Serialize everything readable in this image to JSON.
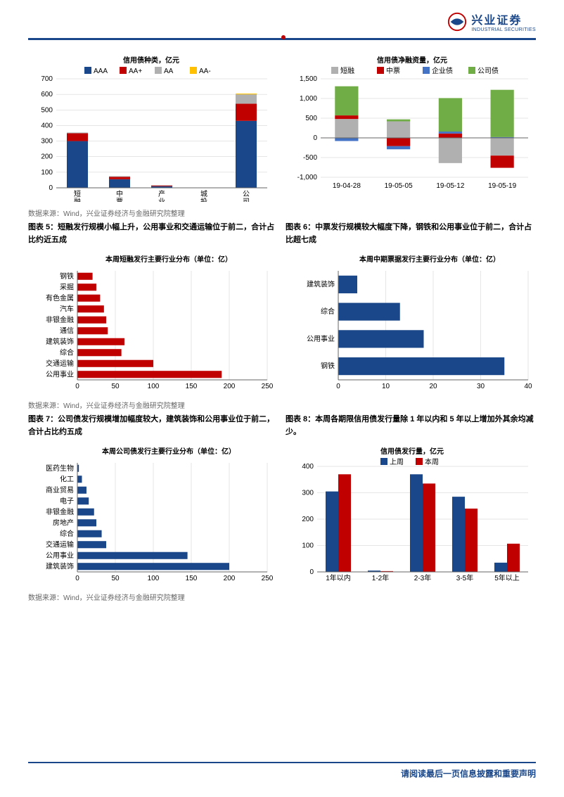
{
  "logo": {
    "cn": "兴业证券",
    "en": "INDUSTRIAL SECURITIES"
  },
  "source": "数据来源：Wind，兴业证券经济与金融研究院整理",
  "footer": "请阅读最后一页信息披露和重要声明",
  "chart1": {
    "title": "信用债种类，亿元",
    "type": "bar",
    "legend": [
      "AAA",
      "AA+",
      "AA",
      "AA-"
    ],
    "legend_colors": [
      "#1a4789",
      "#c00000",
      "#b0b0b0",
      "#ffc000"
    ],
    "categories": [
      "短融",
      "中票",
      "产业债",
      "城投债",
      "公司债"
    ],
    "ylim": [
      0,
      700
    ],
    "ytick_step": 100,
    "series": {
      "AAA": [
        300,
        55,
        10,
        0,
        430
      ],
      "AA+": [
        50,
        15,
        5,
        0,
        110
      ],
      "AA": [
        5,
        5,
        2,
        0,
        60
      ],
      "AA-": [
        0,
        0,
        0,
        0,
        5
      ]
    },
    "background_color": "#ffffff",
    "bar_width": 0.6
  },
  "chart2": {
    "title": "信用债净融资量，亿元",
    "type": "stacked_bar",
    "legend": [
      "短融",
      "中票",
      "企业债",
      "公司债"
    ],
    "legend_colors": [
      "#b0b0b0",
      "#c00000",
      "#4472c4",
      "#70ad47"
    ],
    "categories": [
      "19-04-28",
      "19-05-05",
      "19-05-12",
      "19-05-19"
    ],
    "ylim": [
      -1000,
      1500
    ],
    "ytick_step": 500,
    "series": {
      "short": [
        480,
        420,
        -640,
        -450
      ],
      "mid": [
        90,
        -210,
        110,
        -310
      ],
      "corp": [
        -80,
        -80,
        50,
        20
      ],
      "company": [
        740,
        50,
        850,
        1200
      ]
    }
  },
  "caption56": {
    "left": "图表 5：短融发行规模小幅上升，公用事业和交通运输位于前二，合计占比约近五成",
    "right": "图表 6：中票发行规模较大幅度下降，钢铁和公用事业位于前二，合计占比超七成"
  },
  "chart3": {
    "title": "本周短融发行主要行业分布（单位：亿）",
    "type": "hbar",
    "bar_color": "#c00000",
    "categories": [
      "钢铁",
      "采掘",
      "有色金属",
      "汽车",
      "非银金融",
      "通信",
      "建筑装饰",
      "综合",
      "交通运输",
      "公用事业"
    ],
    "values": [
      20,
      25,
      30,
      35,
      38,
      40,
      62,
      58,
      100,
      190
    ],
    "xlim": [
      0,
      250
    ],
    "xtick_step": 50
  },
  "chart4": {
    "title": "本周中期票据发行主要行业分布（单位：亿）",
    "type": "hbar",
    "bar_color": "#1a4789",
    "categories": [
      "建筑装饰",
      "综合",
      "公用事业",
      "钢铁"
    ],
    "values": [
      4,
      13,
      18,
      35
    ],
    "xlim": [
      0,
      40
    ],
    "xtick_step": 10
  },
  "caption78": {
    "left": "图表 7：公司债发行规模增加幅度较大，建筑装饰和公用事业位于前二，合计占比约五成",
    "right": "图表 8：本周各期限信用债发行量除 1 年以内和 5 年以上增加外其余均减少。"
  },
  "chart5": {
    "title": "本周公司债发行主要行业分布（单位：亿）",
    "type": "hbar",
    "bar_color": "#1a4789",
    "categories": [
      "医药生物",
      "化工",
      "商业贸易",
      "电子",
      "非银金融",
      "房地产",
      "综合",
      "交通运输",
      "公用事业",
      "建筑装饰"
    ],
    "values": [
      2,
      6,
      12,
      15,
      22,
      25,
      32,
      38,
      145,
      200
    ],
    "xlim": [
      0,
      250
    ],
    "xtick_step": 50
  },
  "chart6": {
    "title": "信用债发行量，亿元",
    "type": "grouped_bar",
    "legend": [
      "上周",
      "本周"
    ],
    "legend_colors": [
      "#1a4789",
      "#c00000"
    ],
    "categories": [
      "1年以内",
      "1-2年",
      "2-3年",
      "3-5年",
      "5年以上"
    ],
    "ylim": [
      0,
      400
    ],
    "ytick_step": 100,
    "series": {
      "last": [
        305,
        5,
        370,
        285,
        35
      ],
      "this": [
        370,
        3,
        335,
        240,
        107
      ]
    }
  }
}
